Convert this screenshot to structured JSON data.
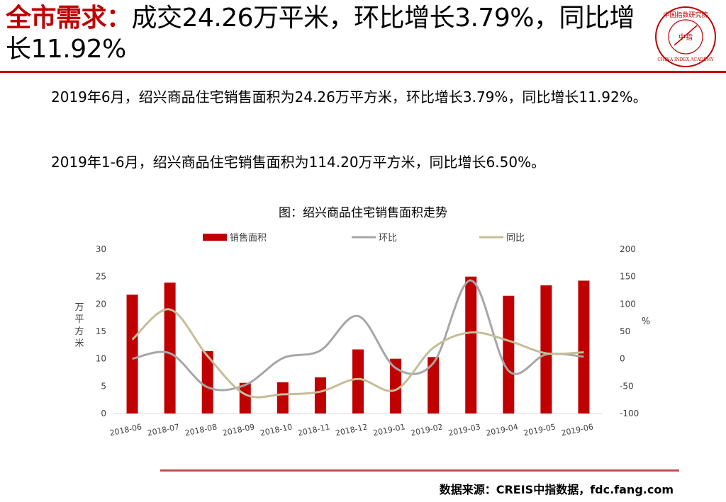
{
  "header": {
    "title_highlight": "全市需求：",
    "title_rest": "成交24.26万平米，环比增长3.79%，同比增长11.92%",
    "logo": {
      "icon": "seal-logo-icon",
      "text_top": "中国指数研究院",
      "text_center": "中指",
      "text_bottom": "CHINA INDEX ACADEMY"
    }
  },
  "body": {
    "paragraph_1": "2019年6月，绍兴商品住宅销售面积为24.26万平方米，环比增长3.79%，同比增长11.92%。",
    "paragraph_2": "2019年1-6月，绍兴商品住宅销售面积为114.20万平方米，同比增长6.50%。"
  },
  "chart_title": "图：绍兴商品住宅销售面积走势",
  "chart_data": {
    "type": "bar",
    "title": "图：绍兴商品住宅销售面积走势",
    "categories": [
      "2018-06",
      "2018-07",
      "2018-08",
      "2018-09",
      "2018-10",
      "2018-11",
      "2018-12",
      "2019-01",
      "2019-02",
      "2019-03",
      "2019-04",
      "2019-05",
      "2019-06"
    ],
    "ylabel": "万平方米",
    "y2label": "%",
    "ylim": [
      0,
      30
    ],
    "y2lim": [
      -100,
      200
    ],
    "yticks": [
      0,
      5,
      10,
      15,
      20,
      25,
      30
    ],
    "y2ticks": [
      -100,
      -50,
      0,
      50,
      100,
      150,
      200
    ],
    "grid": false,
    "legend_position": "top",
    "series": [
      {
        "name": "销售面积",
        "type": "bar",
        "axis": "left",
        "color": "#c00000",
        "values": [
          21.7,
          23.9,
          11.4,
          5.6,
          5.7,
          6.6,
          11.7,
          10.0,
          10.3,
          25.0,
          21.5,
          23.4,
          24.26
        ]
      },
      {
        "name": "环比",
        "type": "line",
        "axis": "right",
        "color": "#a6a6a6",
        "values": [
          0,
          10,
          -52,
          -48,
          1,
          15,
          78,
          -17,
          -8,
          143,
          -22,
          8,
          3.79
        ]
      },
      {
        "name": "同比",
        "type": "line",
        "axis": "right",
        "color": "#c4bd97",
        "values": [
          35,
          90,
          5,
          -65,
          -65,
          -60,
          -37,
          -57,
          20,
          48,
          33,
          10,
          11.92
        ]
      }
    ]
  },
  "footer": {
    "source": "数据来源：CREIS中指数据，fdc.fang.com"
  }
}
